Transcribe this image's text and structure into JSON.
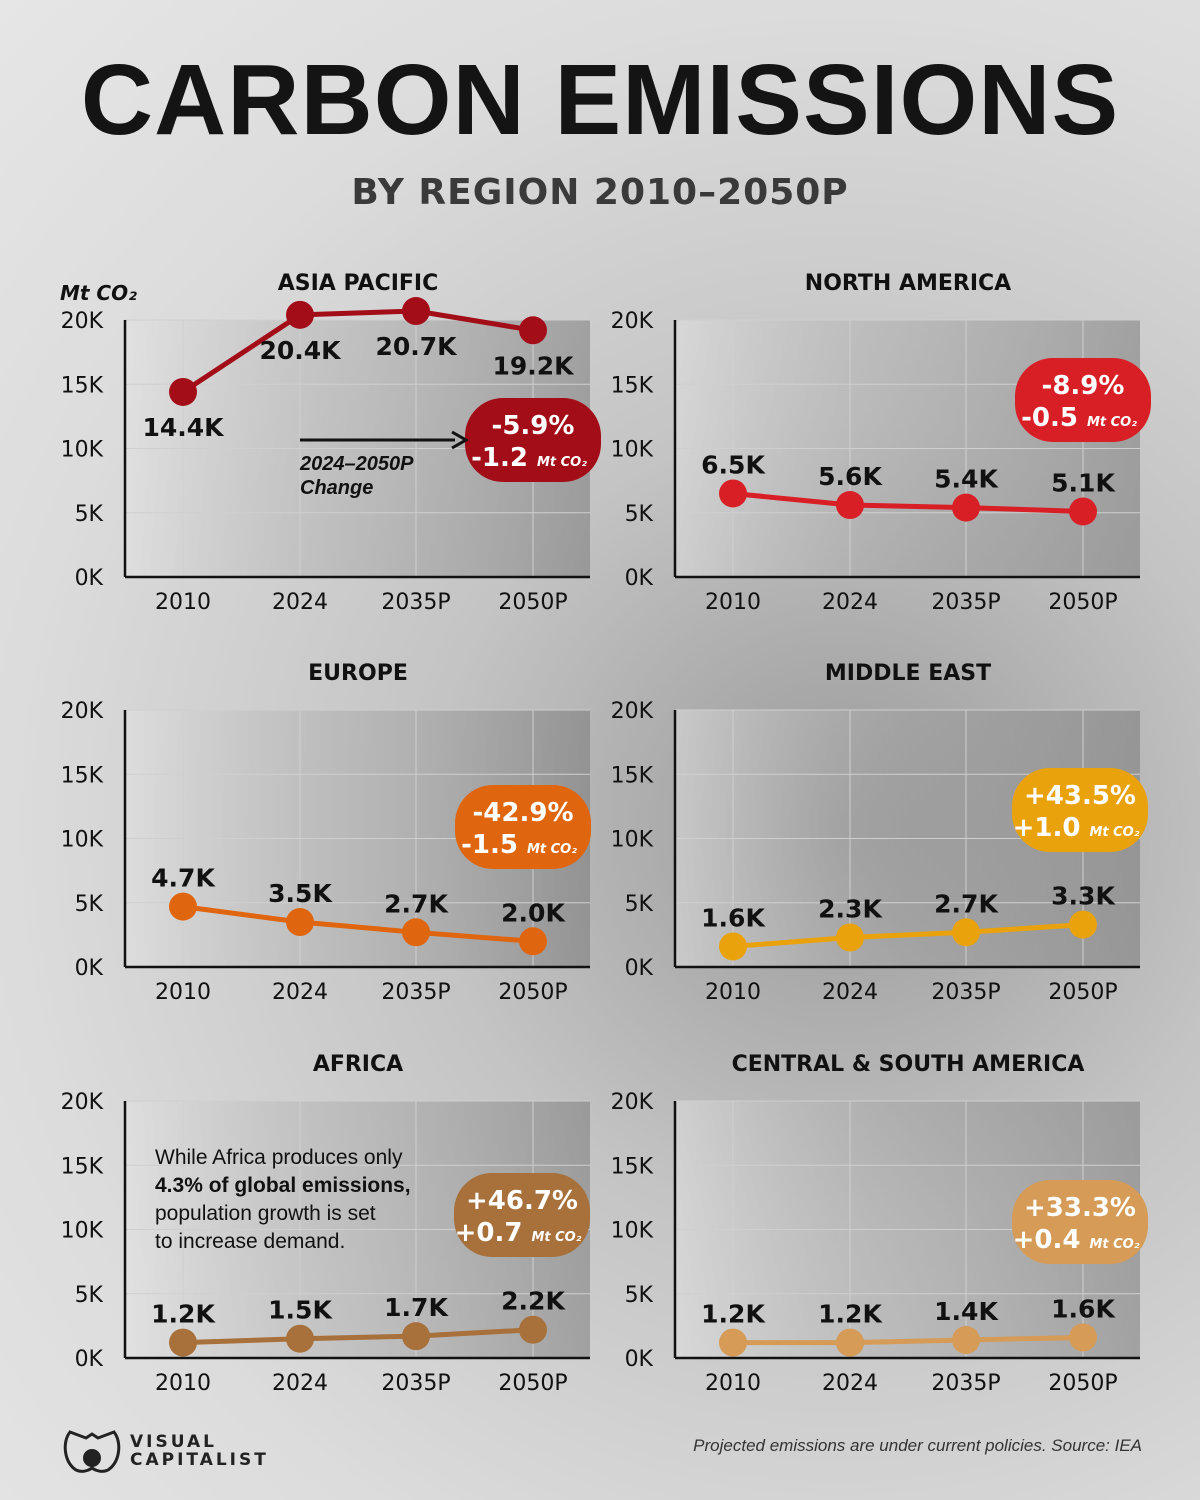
{
  "header": {
    "title": "CARBON EMISSIONS",
    "subtitle": "BY REGION 2010–2050P"
  },
  "footer": {
    "logo_line1": "VISUAL",
    "logo_line2": "CAPITALIST",
    "source": "Projected emissions are under current policies. Source: IEA"
  },
  "chart_data": [
    {
      "type": "line",
      "title": "ASIA PACIFIC",
      "ylabel": "Mt CO2",
      "categories": [
        "2010",
        "2024",
        "2035P",
        "2050P"
      ],
      "values": [
        14400,
        20400,
        20700,
        19200
      ],
      "labels": [
        "14.4K",
        "20.4K",
        "20.7K",
        "19.2K"
      ],
      "ylim": [
        0,
        20000
      ],
      "yticks": [
        "0K",
        "5K",
        "10K",
        "15K",
        "20K"
      ],
      "grid": true,
      "color": "#a30d18",
      "change_pct": "-5.9%",
      "change_abs": "-1.2",
      "change_unit": "Mt CO₂",
      "annotation": [
        "2024–2050P",
        "Change"
      ]
    },
    {
      "type": "line",
      "title": "NORTH AMERICA",
      "categories": [
        "2010",
        "2024",
        "2035P",
        "2050P"
      ],
      "values": [
        6500,
        5600,
        5400,
        5100
      ],
      "labels": [
        "6.5K",
        "5.6K",
        "5.4K",
        "5.1K"
      ],
      "ylim": [
        0,
        20000
      ],
      "grid": true,
      "color": "#d91f26",
      "change_pct": "-8.9%",
      "change_abs": "-0.5",
      "change_unit": "Mt CO₂"
    },
    {
      "type": "line",
      "title": "EUROPE",
      "categories": [
        "2010",
        "2024",
        "2035P",
        "2050P"
      ],
      "values": [
        4700,
        3500,
        2700,
        2000
      ],
      "labels": [
        "4.7K",
        "3.5K",
        "2.7K",
        "2.0K"
      ],
      "ylim": [
        0,
        20000
      ],
      "yticks": [
        "0K",
        "5K",
        "10K",
        "15K",
        "20K"
      ],
      "grid": true,
      "color": "#e0650f",
      "change_pct": "-42.9%",
      "change_abs": "-1.5",
      "change_unit": "Mt CO₂"
    },
    {
      "type": "line",
      "title": "MIDDLE EAST",
      "categories": [
        "2010",
        "2024",
        "2035P",
        "2050P"
      ],
      "values": [
        1600,
        2300,
        2700,
        3300
      ],
      "labels": [
        "1.6K",
        "2.3K",
        "2.7K",
        "3.3K"
      ],
      "ylim": [
        0,
        20000
      ],
      "grid": true,
      "color": "#e9a20b",
      "change_pct": "+43.5%",
      "change_abs": "+1.0",
      "change_unit": "Mt CO₂"
    },
    {
      "type": "line",
      "title": "AFRICA",
      "categories": [
        "2010",
        "2024",
        "2035P",
        "2050P"
      ],
      "values": [
        1200,
        1500,
        1700,
        2200
      ],
      "labels": [
        "1.2K",
        "1.5K",
        "1.7K",
        "2.2K"
      ],
      "ylim": [
        0,
        20000
      ],
      "yticks": [
        "0K",
        "5K",
        "10K",
        "15K",
        "20K"
      ],
      "grid": true,
      "color": "#a8703b",
      "change_pct": "+46.7%",
      "change_abs": "+0.7",
      "change_unit": "Mt CO₂",
      "note": [
        "While Africa produces only",
        "4.3% of global emissions,",
        "population growth is set",
        "to increase demand."
      ]
    },
    {
      "type": "line",
      "title": "CENTRAL & SOUTH AMERICA",
      "categories": [
        "2010",
        "2024",
        "2035P",
        "2050P"
      ],
      "values": [
        1200,
        1200,
        1400,
        1600
      ],
      "labels": [
        "1.2K",
        "1.2K",
        "1.4K",
        "1.6K"
      ],
      "ylim": [
        0,
        20000
      ],
      "grid": true,
      "color": "#d59b57",
      "change_pct": "+33.3%",
      "change_abs": "+0.4",
      "change_unit": "Mt CO₂"
    }
  ]
}
